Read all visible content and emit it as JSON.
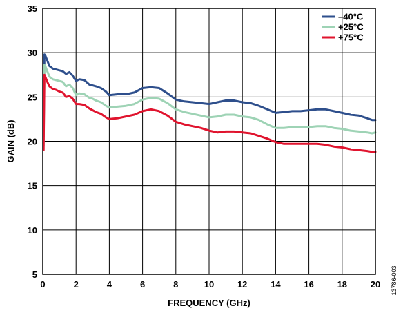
{
  "chart_data": {
    "type": "line",
    "title": "",
    "xlabel": "FREQUENCY (GHz)",
    "ylabel": "GAIN (dB)",
    "xlim": [
      0,
      20
    ],
    "ylim": [
      5,
      35
    ],
    "xticks": [
      0,
      2,
      4,
      6,
      8,
      10,
      12,
      14,
      16,
      18,
      20
    ],
    "yticks": [
      5,
      10,
      15,
      20,
      25,
      30,
      35
    ],
    "grid": true,
    "legend_position": "top-right",
    "figure_id": "13786-003",
    "series": [
      {
        "name": "–40°C",
        "color": "#2e4f8c",
        "x": [
          0.05,
          0.1,
          0.15,
          0.25,
          0.4,
          0.6,
          0.8,
          1.0,
          1.2,
          1.4,
          1.6,
          1.8,
          2.0,
          2.2,
          2.5,
          2.8,
          3.0,
          3.2,
          3.5,
          3.8,
          4.0,
          4.5,
          5.0,
          5.5,
          6.0,
          6.5,
          7.0,
          7.5,
          8.0,
          8.5,
          9.0,
          9.5,
          10.0,
          10.5,
          11.0,
          11.5,
          12.0,
          12.5,
          13.0,
          13.5,
          14.0,
          14.5,
          15.0,
          15.5,
          16.0,
          16.5,
          17.0,
          17.5,
          18.0,
          18.5,
          19.0,
          19.5,
          19.8,
          20.0
        ],
        "values": [
          20.5,
          29.8,
          29.7,
          29.2,
          28.5,
          28.2,
          28.1,
          28.0,
          27.9,
          27.6,
          27.8,
          27.4,
          26.8,
          27.0,
          26.9,
          26.4,
          26.3,
          26.2,
          26.0,
          25.6,
          25.2,
          25.3,
          25.3,
          25.5,
          26.0,
          26.1,
          26.0,
          25.4,
          24.7,
          24.5,
          24.4,
          24.3,
          24.2,
          24.4,
          24.6,
          24.6,
          24.4,
          24.3,
          24.0,
          23.6,
          23.2,
          23.3,
          23.4,
          23.4,
          23.5,
          23.6,
          23.6,
          23.4,
          23.2,
          23.0,
          22.9,
          22.6,
          22.4,
          22.4
        ]
      },
      {
        "name": "+25°C",
        "color": "#9ed3b5",
        "x": [
          0.05,
          0.1,
          0.15,
          0.25,
          0.4,
          0.6,
          0.8,
          1.0,
          1.2,
          1.4,
          1.6,
          1.8,
          2.0,
          2.2,
          2.5,
          2.8,
          3.0,
          3.2,
          3.5,
          3.8,
          4.0,
          4.5,
          5.0,
          5.5,
          6.0,
          6.5,
          7.0,
          7.5,
          8.0,
          8.5,
          9.0,
          9.5,
          10.0,
          10.5,
          11.0,
          11.5,
          12.0,
          12.5,
          13.0,
          13.5,
          14.0,
          14.5,
          15.0,
          15.5,
          16.0,
          16.5,
          17.0,
          17.5,
          18.0,
          18.5,
          19.0,
          19.5,
          19.8,
          20.0
        ],
        "values": [
          19.5,
          28.6,
          28.5,
          28.0,
          27.3,
          27.0,
          26.9,
          26.8,
          26.7,
          26.2,
          26.4,
          26.0,
          25.2,
          25.4,
          25.3,
          24.9,
          24.8,
          24.6,
          24.4,
          24.0,
          23.8,
          23.9,
          24.0,
          24.2,
          24.7,
          24.9,
          24.8,
          24.3,
          23.6,
          23.3,
          23.1,
          22.9,
          22.7,
          22.8,
          23.0,
          23.0,
          22.8,
          22.7,
          22.4,
          21.9,
          21.5,
          21.5,
          21.6,
          21.6,
          21.6,
          21.7,
          21.7,
          21.5,
          21.4,
          21.2,
          21.1,
          21.0,
          20.9,
          21.0
        ]
      },
      {
        "name": "+75°C",
        "color": "#e0142e",
        "x": [
          0.05,
          0.1,
          0.15,
          0.25,
          0.4,
          0.6,
          0.8,
          1.0,
          1.2,
          1.4,
          1.6,
          1.8,
          2.0,
          2.2,
          2.5,
          2.8,
          3.0,
          3.2,
          3.5,
          3.8,
          4.0,
          4.5,
          5.0,
          5.5,
          6.0,
          6.5,
          7.0,
          7.5,
          8.0,
          8.5,
          9.0,
          9.5,
          10.0,
          10.5,
          11.0,
          11.5,
          12.0,
          12.5,
          13.0,
          13.5,
          14.0,
          14.5,
          15.0,
          15.5,
          16.0,
          16.5,
          17.0,
          17.5,
          18.0,
          18.5,
          19.0,
          19.5,
          19.8,
          20.0
        ],
        "values": [
          19.0,
          27.5,
          27.3,
          26.8,
          26.2,
          25.9,
          25.8,
          25.6,
          25.5,
          25.0,
          25.1,
          24.8,
          24.2,
          24.2,
          24.1,
          23.7,
          23.5,
          23.3,
          23.1,
          22.7,
          22.5,
          22.6,
          22.8,
          23.0,
          23.4,
          23.6,
          23.4,
          22.9,
          22.2,
          21.9,
          21.7,
          21.5,
          21.2,
          21.0,
          21.1,
          21.1,
          21.0,
          20.9,
          20.6,
          20.3,
          19.9,
          19.7,
          19.7,
          19.7,
          19.7,
          19.7,
          19.6,
          19.4,
          19.3,
          19.1,
          19.0,
          18.9,
          18.8,
          18.8
        ]
      }
    ]
  }
}
